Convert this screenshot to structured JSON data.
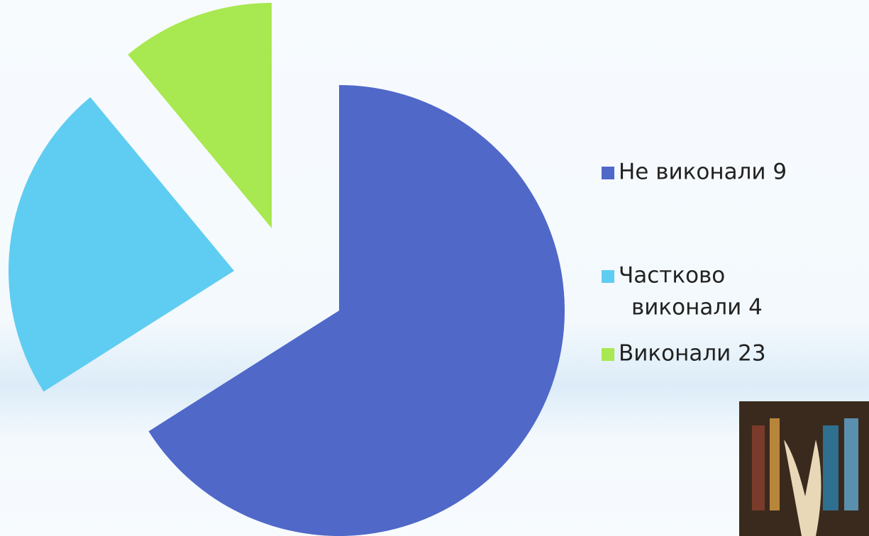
{
  "chart_data": {
    "type": "pie",
    "categories": [
      "Не виконали 9",
      "Частково виконали 4",
      "Виконали 23"
    ],
    "values": [
      66,
      23,
      11
    ],
    "colors": [
      "#5068c8",
      "#5fcdf1",
      "#a8e850"
    ]
  }
}
